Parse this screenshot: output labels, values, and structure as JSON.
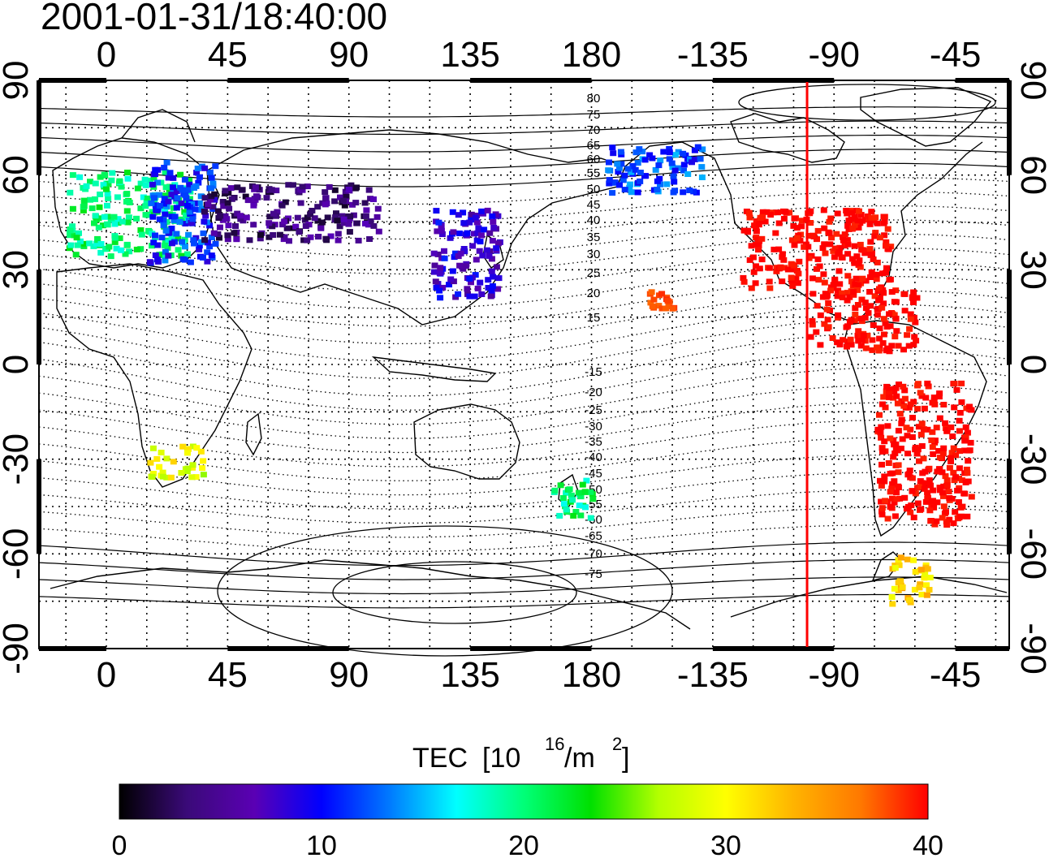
{
  "timestamp": "2001-01-31/18:40:00",
  "top_lon_labels": [
    "0",
    "45",
    "90",
    "135",
    "180",
    "-135",
    "-90",
    "-45"
  ],
  "bottom_lon_labels": [
    "0",
    "45",
    "90",
    "135",
    "180",
    "-135",
    "-90",
    "-45"
  ],
  "left_lat_labels": [
    "90",
    "60",
    "30",
    "0",
    "-30",
    "-60",
    "-90"
  ],
  "right_lat_labels": [
    "90",
    "60",
    "30",
    "0",
    "-30",
    "-60",
    "-90"
  ],
  "contour_labels_north": [
    "80",
    "75",
    "70",
    "65",
    "60",
    "55",
    "50",
    "45",
    "40",
    "35",
    "30",
    "25",
    "20",
    "15"
  ],
  "contour_labels_south": [
    "-15",
    "-20",
    "-25",
    "-30",
    "-35",
    "-40",
    "-45",
    "-50",
    "-55",
    "-60",
    "-65",
    "-70",
    "-75"
  ],
  "colorbar": {
    "title": "TEC",
    "unit_base": "[10",
    "unit_exp": "16",
    "unit_mid": "/m",
    "unit_exp2": "2",
    "unit_end": "]",
    "min": 0,
    "max": 40,
    "tick_labels": [
      "0",
      "10",
      "20",
      "30",
      "40"
    ],
    "colors": [
      "#000000",
      "#3a0a78",
      "#5a00b4",
      "#0000ff",
      "#0078ff",
      "#00ffff",
      "#00ff78",
      "#00e000",
      "#b4ff00",
      "#ffff00",
      "#ffb400",
      "#ff7800",
      "#ff0000"
    ]
  },
  "terminator_longitude": -100,
  "terminator_color": "#ff0000",
  "chart_data": {
    "type": "map",
    "title": "2001-01-31/18:40:00",
    "xlim": [
      -25,
      335
    ],
    "ylim": [
      -90,
      90
    ],
    "grid": true,
    "colorbar_label": "TEC [10^16/m^2]",
    "colorbar_range": [
      0,
      40
    ],
    "clusters": [
      {
        "lon_range": [
          -15,
          30
        ],
        "lat_range": [
          35,
          62
        ],
        "tec": 20
      },
      {
        "lon_range": [
          15,
          40
        ],
        "lat_range": [
          33,
          65
        ],
        "tec": 11
      },
      {
        "lon_range": [
          35,
          100
        ],
        "lat_range": [
          40,
          58
        ],
        "tec": 4
      },
      {
        "lon_range": [
          120,
          145
        ],
        "lat_range": [
          22,
          50
        ],
        "tec": 8
      },
      {
        "lon_range": [
          -125,
          -70
        ],
        "lat_range": [
          25,
          50
        ],
        "tec": 40
      },
      {
        "lon_range": [
          -100,
          -60
        ],
        "lat_range": [
          5,
          25
        ],
        "tec": 40
      },
      {
        "lon_range": [
          -75,
          -40
        ],
        "lat_range": [
          -50,
          -5
        ],
        "tec": 40
      },
      {
        "lon_range": [
          -160,
          -150
        ],
        "lat_range": [
          18,
          24
        ],
        "tec": 38
      },
      {
        "lon_range": [
          15,
          35
        ],
        "lat_range": [
          -35,
          -25
        ],
        "tec": 29
      },
      {
        "lon_range": [
          165,
          180
        ],
        "lat_range": [
          -48,
          -35
        ],
        "tec": 20
      },
      {
        "lon_range": [
          -175,
          -140
        ],
        "lat_range": [
          55,
          70
        ],
        "tec": 12
      },
      {
        "lon_range": [
          -70,
          -55
        ],
        "lat_range": [
          -75,
          -60
        ],
        "tec": 32
      }
    ]
  }
}
